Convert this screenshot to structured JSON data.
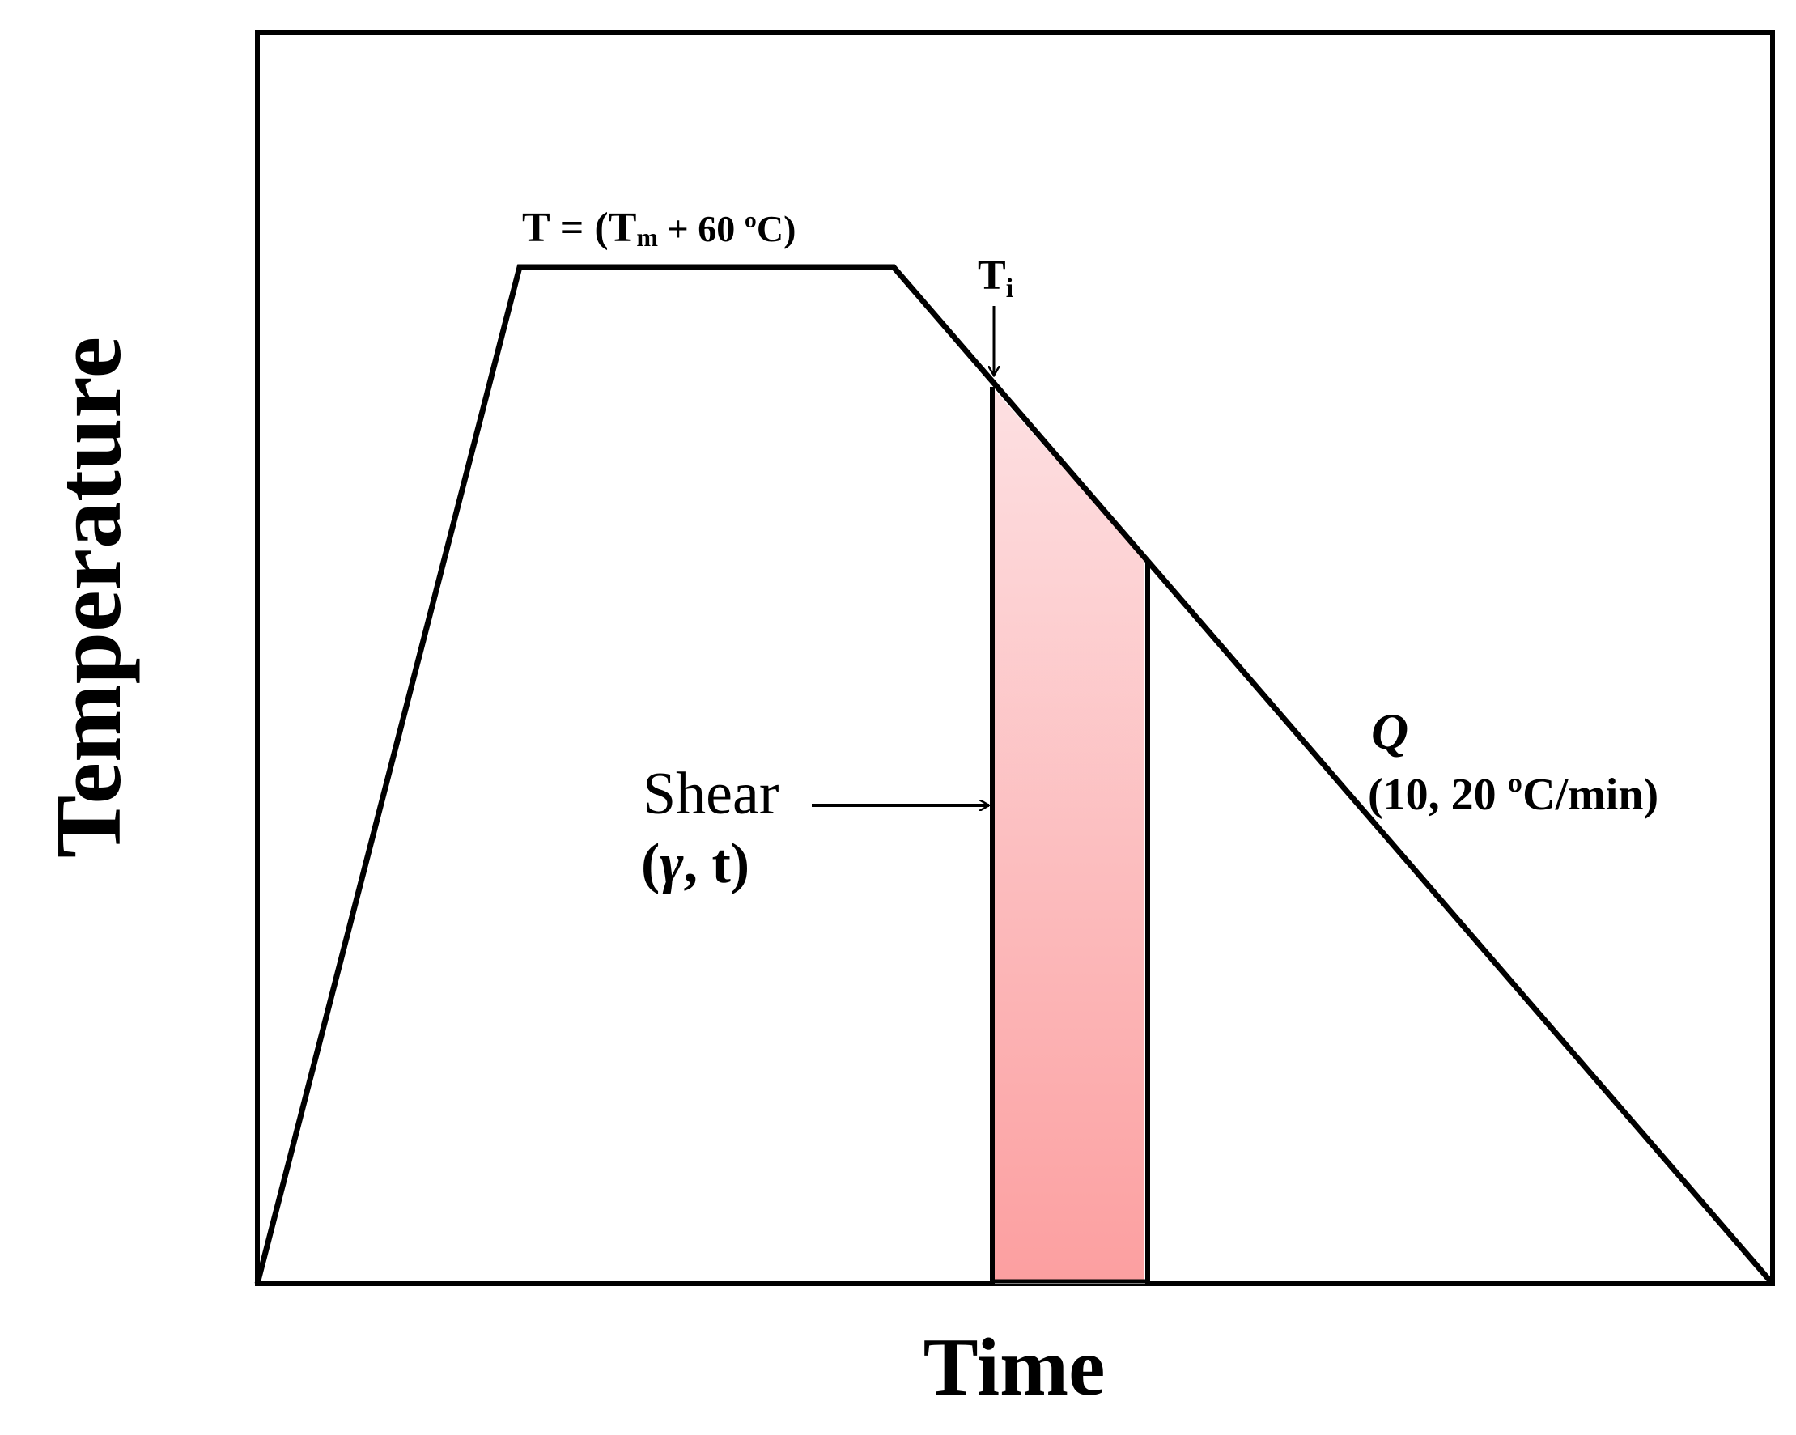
{
  "diagram": {
    "axes": {
      "ylabel": "Temperature",
      "xlabel": "Time"
    },
    "annotations": {
      "hold_label": {
        "prefix": "T = (T",
        "subscript": "m",
        "suffix": " + 60 ºC)"
      },
      "ti_label": {
        "main": "T",
        "subscript": "i"
      },
      "shear_label": "Shear",
      "shear_params": {
        "open": "(",
        "gamma": "γ",
        "rest": ", t)"
      },
      "rate_symbol": "Q",
      "rate_values": "(10, 20 ºC/min)"
    },
    "colors": {
      "line": "#000000",
      "shear_fill_top": "#fde0e2",
      "shear_fill_bottom": "#fc9fa0"
    }
  }
}
